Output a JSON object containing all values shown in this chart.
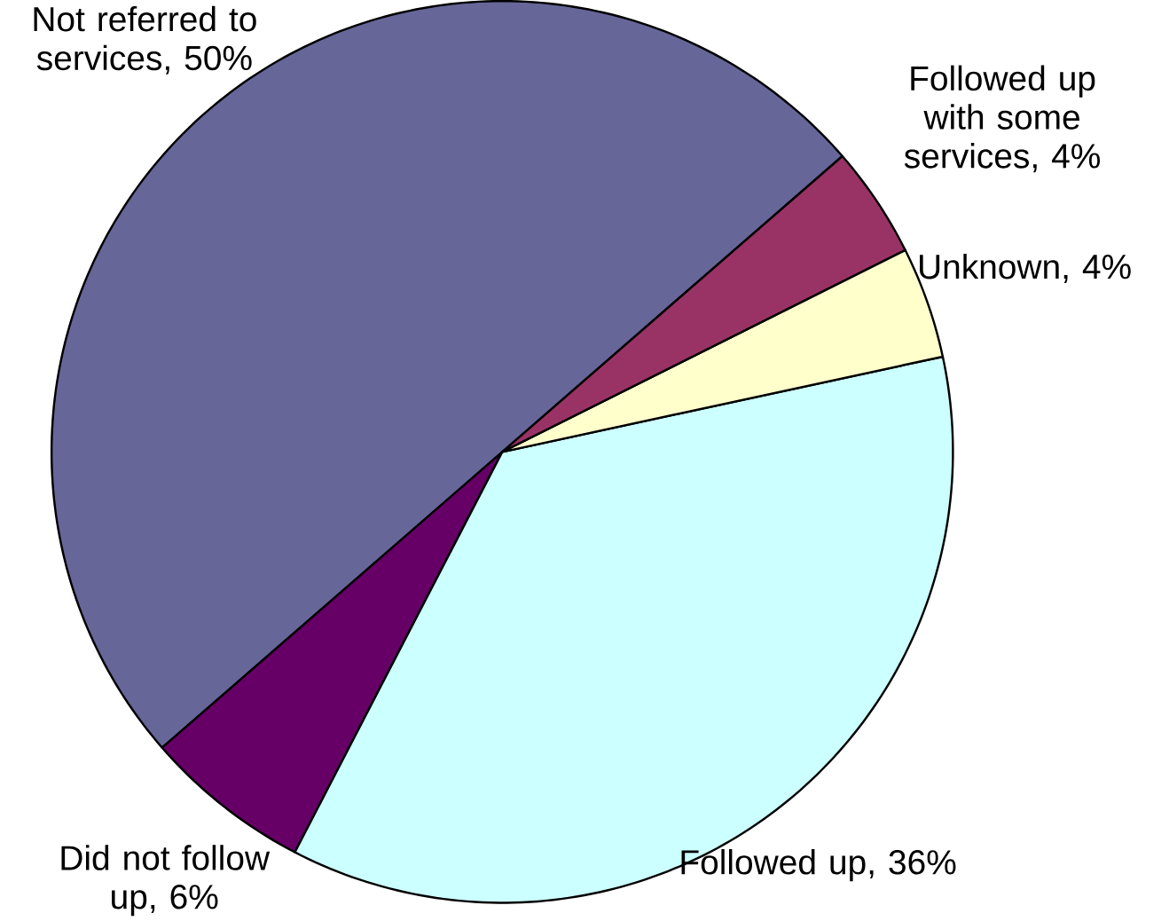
{
  "chart_data": {
    "type": "pie",
    "categories": [
      "Not referred to services, 50%",
      "Did not follow up, 6%",
      "Followed up, 36%",
      "Unknown, 4%",
      "Followed up with some services, 4%"
    ],
    "values": [
      50,
      6,
      36,
      4,
      4
    ],
    "colors": [
      "#666699",
      "#660066",
      "#ccffff",
      "#ffffcc",
      "#993366"
    ]
  }
}
